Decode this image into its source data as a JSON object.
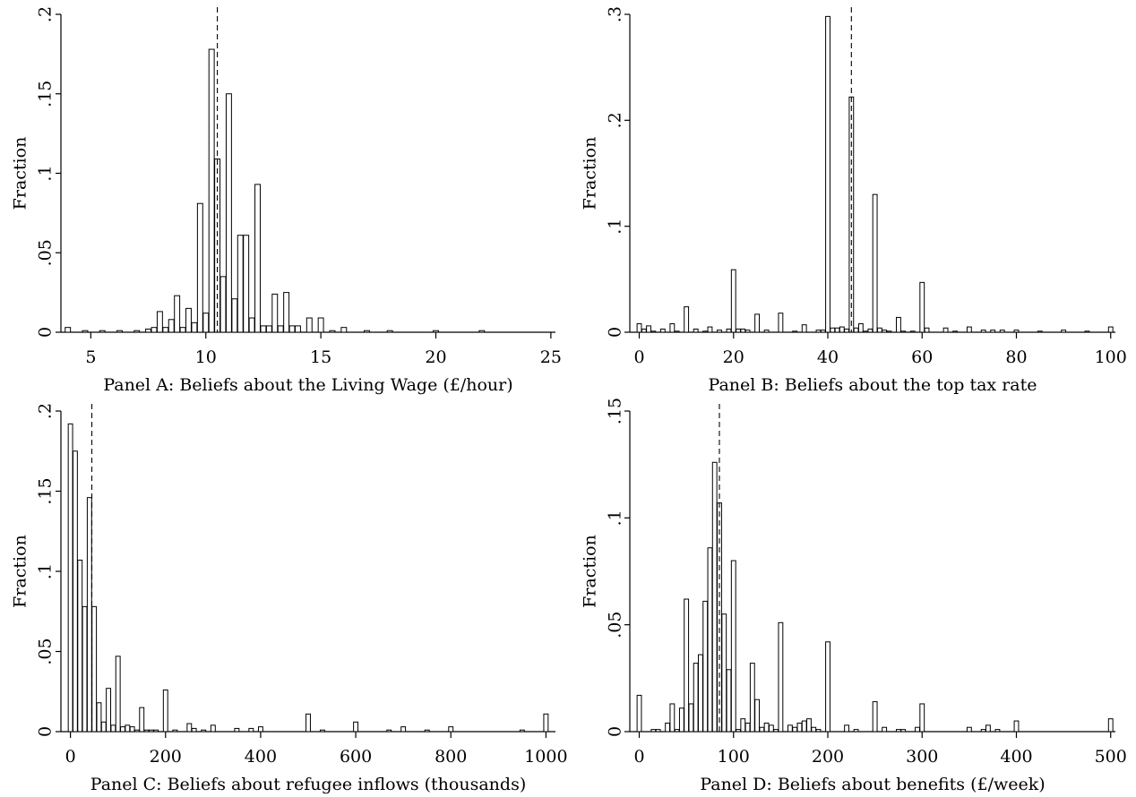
{
  "chart_data": [
    {
      "type": "bar",
      "title": "",
      "xlabel": "Panel A: Beliefs about the Living Wage (£/hour)",
      "ylabel": "Fraction",
      "xlim": [
        3.7,
        25.2
      ],
      "ylim": [
        0,
        0.2
      ],
      "xticks": [
        5,
        10,
        15,
        20,
        25
      ],
      "yticks": [
        0,
        0.05,
        0.1,
        0.15,
        0.2
      ],
      "yticklabels": [
        "0",
        ".05",
        ".1",
        ".15",
        ".2"
      ],
      "bin_width": 0.25,
      "reference_line_x": 10.5,
      "x": [
        4,
        4.75,
        5.5,
        6.25,
        7,
        7.5,
        7.75,
        8,
        8.25,
        8.5,
        8.75,
        9,
        9.25,
        9.5,
        9.75,
        10,
        10.25,
        10.5,
        10.75,
        11,
        11.25,
        11.5,
        11.75,
        12,
        12.25,
        12.5,
        12.75,
        13,
        13.25,
        13.5,
        13.75,
        14,
        14.5,
        15,
        15.5,
        16,
        17,
        18,
        20,
        22
      ],
      "values": [
        0.003,
        0.001,
        0.001,
        0.001,
        0.001,
        0.002,
        0.003,
        0.013,
        0.003,
        0.008,
        0.023,
        0.003,
        0.015,
        0.006,
        0.081,
        0.012,
        0.178,
        0.109,
        0.035,
        0.15,
        0.021,
        0.061,
        0.061,
        0.009,
        0.093,
        0.004,
        0.004,
        0.024,
        0.004,
        0.025,
        0.004,
        0.004,
        0.009,
        0.009,
        0.001,
        0.003,
        0.001,
        0.001,
        0.001,
        0.001
      ]
    },
    {
      "type": "bar",
      "title": "",
      "xlabel": "Panel B: Beliefs about the top tax rate",
      "ylabel": "Fraction",
      "xlim": [
        -2,
        101
      ],
      "ylim": [
        0,
        0.3
      ],
      "xticks": [
        0,
        20,
        40,
        60,
        80,
        100
      ],
      "yticks": [
        0,
        0.1,
        0.2,
        0.3
      ],
      "yticklabels": [
        "0",
        ".1",
        ".2",
        ".3"
      ],
      "bin_width": 1,
      "reference_line_x": 45,
      "x": [
        0,
        1,
        2,
        3,
        5,
        7,
        8,
        10,
        12,
        14,
        15,
        17,
        19,
        20,
        21,
        22,
        23,
        25,
        27,
        30,
        33,
        35,
        38,
        39,
        40,
        41,
        42,
        43,
        44,
        45,
        46,
        47,
        48,
        49,
        50,
        51,
        52,
        53,
        55,
        56,
        58,
        60,
        61,
        65,
        67,
        70,
        73,
        75,
        77,
        80,
        85,
        90,
        95,
        100
      ],
      "values": [
        0.008,
        0.003,
        0.006,
        0.001,
        0.003,
        0.008,
        0.001,
        0.024,
        0.003,
        0.001,
        0.005,
        0.002,
        0.003,
        0.059,
        0.003,
        0.003,
        0.002,
        0.017,
        0.002,
        0.018,
        0.001,
        0.007,
        0.002,
        0.002,
        0.298,
        0.004,
        0.004,
        0.005,
        0.003,
        0.222,
        0.004,
        0.008,
        0.001,
        0.003,
        0.13,
        0.004,
        0.002,
        0.001,
        0.014,
        0.001,
        0.001,
        0.047,
        0.004,
        0.004,
        0.001,
        0.005,
        0.002,
        0.002,
        0.002,
        0.002,
        0.001,
        0.002,
        0.001,
        0.005
      ]
    },
    {
      "type": "bar",
      "title": "",
      "xlabel": "Panel C: Beliefs about refugee inflows (thousands)",
      "ylabel": "Fraction",
      "xlim": [
        -20,
        1020
      ],
      "ylim": [
        0,
        0.2
      ],
      "xticks": [
        0,
        200,
        400,
        600,
        800,
        1000
      ],
      "yticks": [
        0,
        0.05,
        0.1,
        0.15,
        0.2
      ],
      "yticklabels": [
        "0",
        ".05",
        ".1",
        ".15",
        ".2"
      ],
      "bin_width": 10,
      "reference_line_x": 45,
      "x": [
        0,
        10,
        20,
        30,
        40,
        50,
        60,
        70,
        80,
        90,
        100,
        110,
        120,
        130,
        140,
        150,
        160,
        170,
        180,
        200,
        220,
        250,
        260,
        280,
        300,
        350,
        380,
        400,
        500,
        530,
        600,
        670,
        700,
        750,
        800,
        950,
        1000
      ],
      "values": [
        0.192,
        0.175,
        0.107,
        0.078,
        0.146,
        0.078,
        0.018,
        0.006,
        0.027,
        0.004,
        0.047,
        0.003,
        0.004,
        0.003,
        0.001,
        0.015,
        0.001,
        0.001,
        0.001,
        0.026,
        0.001,
        0.005,
        0.002,
        0.001,
        0.004,
        0.002,
        0.002,
        0.003,
        0.011,
        0.001,
        0.006,
        0.001,
        0.003,
        0.001,
        0.003,
        0.001,
        0.011
      ]
    },
    {
      "type": "bar",
      "title": "",
      "xlabel": "Panel D: Beliefs about benefits (£/week)",
      "ylabel": "Fraction",
      "xlim": [
        -10,
        505
      ],
      "ylim": [
        0,
        0.15
      ],
      "xticks": [
        0,
        100,
        200,
        300,
        400,
        500
      ],
      "yticks": [
        0,
        0.05,
        0.1,
        0.15
      ],
      "yticklabels": [
        "0",
        ".05",
        ".1",
        ".15"
      ],
      "bin_width": 5,
      "reference_line_x": 85,
      "x": [
        0,
        15,
        20,
        30,
        35,
        40,
        45,
        50,
        55,
        60,
        65,
        70,
        75,
        80,
        85,
        90,
        95,
        100,
        105,
        110,
        115,
        120,
        125,
        130,
        135,
        140,
        145,
        150,
        160,
        165,
        170,
        175,
        180,
        185,
        190,
        200,
        220,
        230,
        250,
        260,
        275,
        280,
        295,
        300,
        350,
        365,
        370,
        380,
        400,
        500
      ],
      "values": [
        0.017,
        0.001,
        0.001,
        0.004,
        0.013,
        0.001,
        0.011,
        0.062,
        0.013,
        0.032,
        0.036,
        0.061,
        0.086,
        0.126,
        0.107,
        0.055,
        0.029,
        0.08,
        0.001,
        0.006,
        0.004,
        0.032,
        0.015,
        0.002,
        0.004,
        0.003,
        0.001,
        0.051,
        0.003,
        0.002,
        0.004,
        0.005,
        0.006,
        0.002,
        0.001,
        0.042,
        0.003,
        0.001,
        0.014,
        0.002,
        0.001,
        0.001,
        0.002,
        0.013,
        0.002,
        0.001,
        0.003,
        0.001,
        0.005,
        0.006
      ]
    }
  ]
}
